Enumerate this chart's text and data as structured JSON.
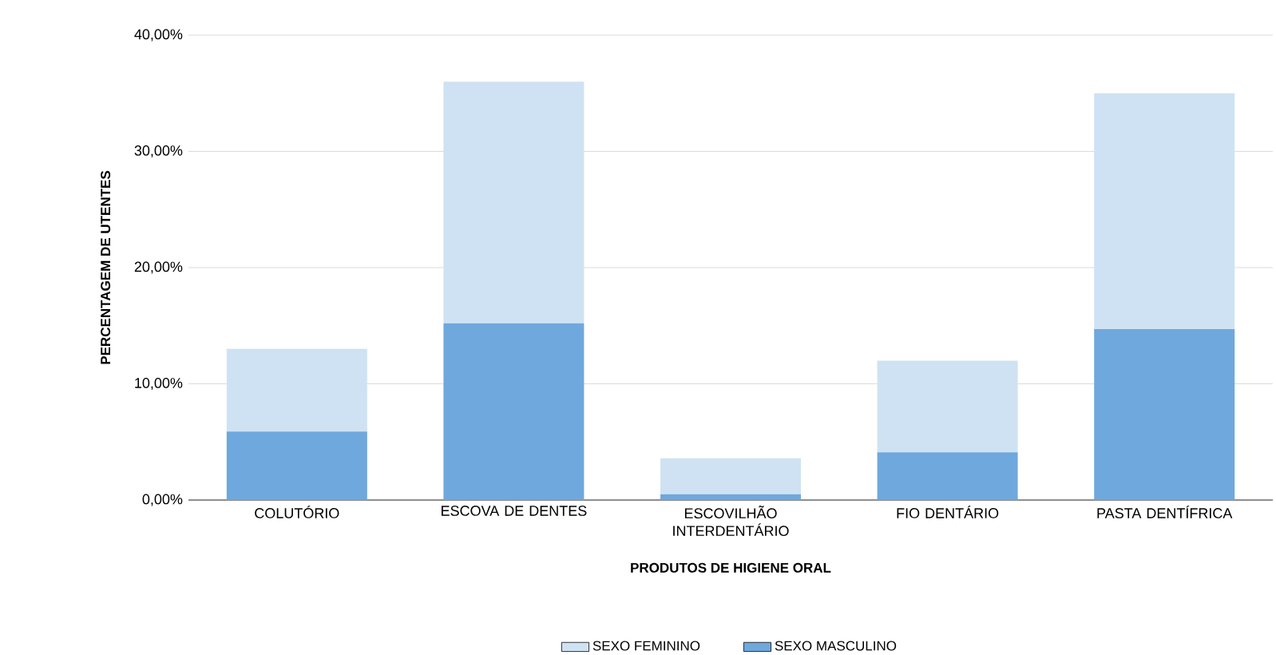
{
  "chart_data": {
    "type": "bar",
    "stacked": true,
    "xlabel": "PRODUTOS DE HIGIENE ORAL",
    "ylabel": "PERCENTAGEM DE UTENTES",
    "categories": [
      "COLUTÓRIO",
      "ESCOVA DE DENTES",
      "ESCOVILHÃO INTERDENTÁRIO",
      "FIO DENTÁRIO",
      "PASTA DENTÍFRICA"
    ],
    "series": [
      {
        "name": "SEXO MASCULINO",
        "color": "#6fa8dc",
        "values": [
          5.9,
          15.2,
          0.5,
          4.1,
          14.7
        ]
      },
      {
        "name": "SEXO FEMININO",
        "color": "#cfe2f3",
        "values": [
          7.1,
          20.8,
          3.1,
          7.9,
          20.3
        ]
      }
    ],
    "ylim": [
      0,
      40
    ],
    "yticks": [
      {
        "value": 0,
        "label": "0,00%"
      },
      {
        "value": 10,
        "label": "10,00%"
      },
      {
        "value": 20,
        "label": "20,00%"
      },
      {
        "value": 30,
        "label": "30,00%"
      },
      {
        "value": 40,
        "label": "40,00%"
      }
    ],
    "grid": "y",
    "legend": "bottom"
  }
}
